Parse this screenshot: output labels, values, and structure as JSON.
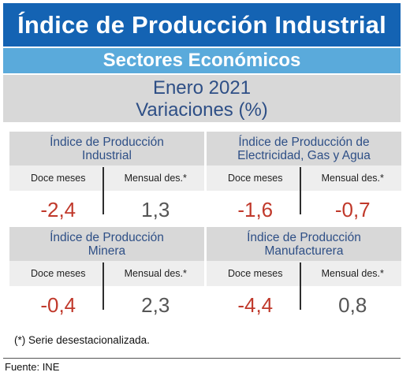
{
  "header": {
    "title": "Índice de Producción Industrial",
    "subtitle": "Sectores Económicos",
    "period": "Enero 2021",
    "measure": "Variaciones (%)"
  },
  "cards": [
    {
      "title_line1": "Índice de Producción",
      "title_line2": "Industrial",
      "label_twelve": "Doce meses",
      "label_monthly": "Mensual des.*",
      "twelve_months": "-2,4",
      "monthly_sa": "1,3"
    },
    {
      "title_line1": "Índice de Producción de",
      "title_line2": "Electricidad, Gas y Agua",
      "label_twelve": "Doce meses",
      "label_monthly": "Mensual des.*",
      "twelve_months": "-1,6",
      "monthly_sa": "-0,7"
    },
    {
      "title_line1": "Índice de Producción",
      "title_line2": "Minera",
      "label_twelve": "Doce meses",
      "label_monthly": "Mensual des.*",
      "twelve_months": "-0,4",
      "monthly_sa": "2,3"
    },
    {
      "title_line1": "Índice de Producción",
      "title_line2": "Manufacturera",
      "label_twelve": "Doce meses",
      "label_monthly": "Mensual des.*",
      "twelve_months": "-4,4",
      "monthly_sa": "0,8"
    }
  ],
  "footnote": "(*)  Serie desestacionalizada.",
  "source": "Fuente: INE",
  "colors": {
    "banner": "#1463b3",
    "subbanner": "#5aaadb",
    "title_text": "#2e4f86",
    "negative": "#c0392b",
    "positive": "#555555"
  }
}
